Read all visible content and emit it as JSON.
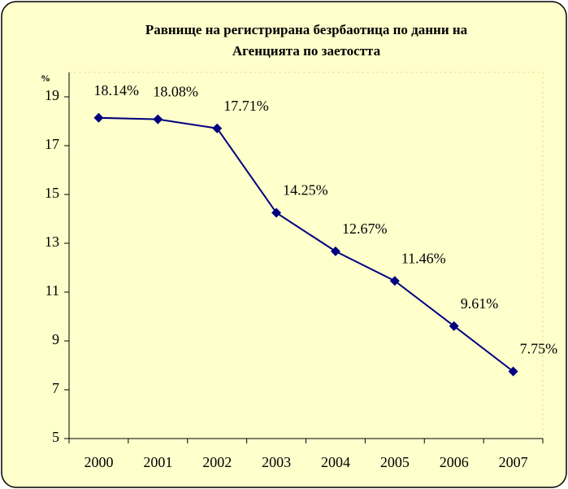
{
  "chart_data": {
    "type": "line",
    "title": [
      "Равнище на регистрирана безрбаотица по данни на",
      "Агенцията по заетостта"
    ],
    "y_label": "%",
    "categories": [
      "2000",
      "2001",
      "2002",
      "2003",
      "2004",
      "2005",
      "2006",
      "2007"
    ],
    "values": [
      18.14,
      18.08,
      17.71,
      14.25,
      12.67,
      11.46,
      9.61,
      7.75
    ],
    "value_labels": [
      "18.14%",
      "18.08%",
      "17.71%",
      "14.25%",
      "12.67%",
      "11.46%",
      "9.61%",
      "7.75%"
    ],
    "color": "#000080",
    "ylim": [
      5,
      20
    ],
    "yticks": [
      5,
      7,
      9,
      11,
      13,
      15,
      17,
      19
    ]
  }
}
